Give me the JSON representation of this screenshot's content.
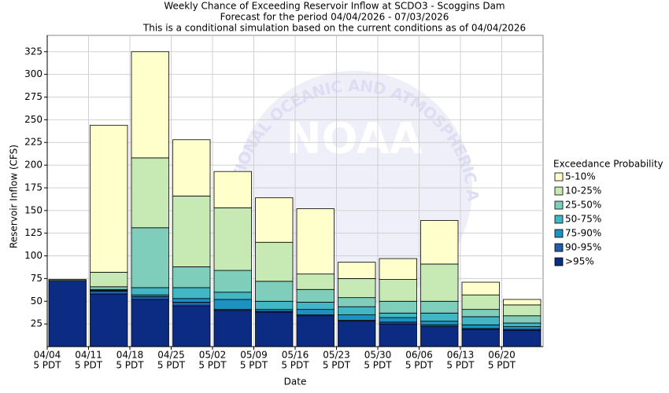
{
  "chart_data": {
    "type": "stacked-bar",
    "title": "Weekly Chance of Exceeding Reservoir Inflow at SCDO3 - Scoggins Dam",
    "subtitle": "Forecast for the period 04/04/2026 - 07/03/2026",
    "annotations": [
      "This is a conditional simulation based on the current conditions as of 04/04/2026"
    ],
    "x_label": "Date",
    "y_label": "Reservoir Inflow (CFS)",
    "legend_title": "Exceedance Probability",
    "watermark": {
      "text": "NOAA",
      "ring": "NATIONAL OCEANIC AND ATMOSPHERIC ADMINISTRATION"
    },
    "categories": [
      [
        "04/04",
        "5 PDT"
      ],
      [
        "04/11",
        "5 PDT"
      ],
      [
        "04/18",
        "5 PDT"
      ],
      [
        "04/25",
        "5 PDT"
      ],
      [
        "05/02",
        "5 PDT"
      ],
      [
        "05/09",
        "5 PDT"
      ],
      [
        "05/16",
        "5 PDT"
      ],
      [
        "05/23",
        "5 PDT"
      ],
      [
        "05/30",
        "5 PDT"
      ],
      [
        "06/06",
        "5 PDT"
      ],
      [
        "06/13",
        "5 PDT"
      ],
      [
        "06/20",
        "5 PDT"
      ]
    ],
    "series": [
      {
        "name": "5-10%",
        "color": "#ffffcc",
        "values": [
          1,
          162,
          117,
          62,
          40,
          49,
          72,
          18,
          23,
          48,
          14,
          6
        ]
      },
      {
        "name": "10-25%",
        "color": "#c7e9b4",
        "values": [
          0,
          16,
          77,
          78,
          69,
          43,
          17,
          21,
          24,
          41,
          16,
          12
        ]
      },
      {
        "name": "25-50%",
        "color": "#7fcdbb",
        "values": [
          0,
          3,
          66,
          23,
          24,
          22,
          14,
          10,
          13,
          13,
          8,
          8
        ]
      },
      {
        "name": "50-75%",
        "color": "#41b6c4",
        "values": [
          0,
          1,
          8,
          12,
          8,
          9,
          8,
          9,
          5,
          9,
          9,
          4
        ]
      },
      {
        "name": "75-90%",
        "color": "#1d91c0",
        "values": [
          0,
          1,
          2,
          4,
          11,
          2,
          6,
          6,
          5,
          4,
          4,
          3
        ]
      },
      {
        "name": "90-95%",
        "color": "#225ea8",
        "values": [
          0,
          3,
          3,
          4,
          1,
          1,
          1,
          1,
          2,
          2,
          1,
          1
        ]
      },
      {
        "name": ">95%",
        "color": "#0c2c84",
        "values": [
          73,
          58,
          52,
          45,
          40,
          38,
          34,
          28,
          25,
          22,
          19,
          18
        ]
      }
    ],
    "ylim": [
      0,
      343
    ],
    "yticks": [
      25,
      50,
      75,
      100,
      125,
      150,
      175,
      200,
      225,
      250,
      275,
      300,
      325
    ],
    "grid": true,
    "legend": "right"
  }
}
